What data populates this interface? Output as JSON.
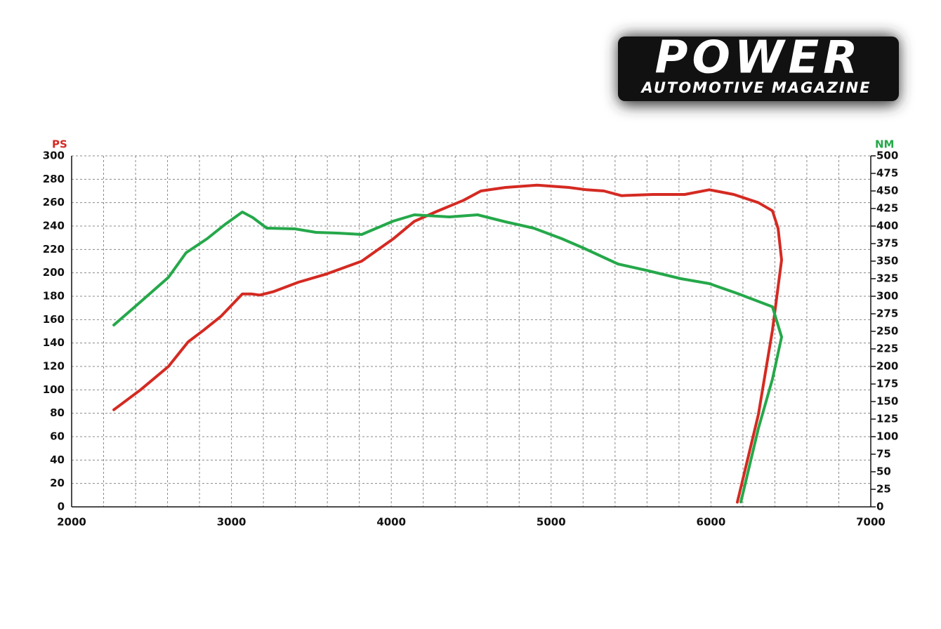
{
  "logo": {
    "title": "POWER",
    "subtitle": "AUTOMOTIVE MAGAZINE"
  },
  "chart_data": {
    "type": "line",
    "ylabel": "PS",
    "y2label": "NM",
    "xlim": [
      2000,
      7000
    ],
    "xticks": [
      2000,
      3000,
      4000,
      5000,
      6000,
      7000
    ],
    "ylim": [
      0,
      300
    ],
    "yticks": [
      0,
      20,
      40,
      60,
      80,
      100,
      120,
      140,
      160,
      180,
      200,
      220,
      240,
      260,
      280,
      300
    ],
    "y2lim": [
      0,
      500
    ],
    "y2ticks": [
      0,
      25,
      50,
      75,
      100,
      125,
      150,
      175,
      200,
      225,
      250,
      275,
      300,
      325,
      350,
      375,
      400,
      425,
      450,
      475,
      500
    ],
    "grid": true,
    "series": [
      {
        "name": "PS",
        "color": "#d42a22",
        "x": [
          2264,
          2431,
          2606,
          2729,
          2826,
          2936,
          3068,
          3125,
          3177,
          3265,
          3419,
          3595,
          3815,
          4012,
          4144,
          4276,
          4452,
          4561,
          4715,
          4913,
          5110,
          5220,
          5330,
          5440,
          5638,
          5836,
          5990,
          6143,
          6297,
          6385,
          6420,
          6442,
          6385,
          6297,
          6165
        ],
        "values": [
          83,
          100,
          120,
          141,
          151,
          163,
          182,
          182,
          181,
          184,
          192,
          199,
          210,
          229,
          244,
          252,
          262,
          270,
          273,
          275,
          273,
          271,
          270,
          266,
          267,
          267,
          271,
          267,
          260,
          253,
          238,
          211,
          151,
          79,
          4
        ]
      },
      {
        "name": "NM",
        "color": "#25a84a",
        "axis": "y2",
        "x": [
          2264,
          2431,
          2606,
          2716,
          2848,
          2958,
          3068,
          3134,
          3221,
          3397,
          3529,
          3661,
          3815,
          4012,
          4144,
          4364,
          4540,
          4715,
          4891,
          5067,
          5199,
          5418,
          5594,
          5813,
          5990,
          6165,
          6385,
          6442,
          6385,
          6297,
          6187
        ],
        "values": [
          259,
          292,
          327,
          362,
          382,
          402,
          420,
          412,
          397,
          396,
          391,
          390,
          388,
          407,
          416,
          413,
          416,
          406,
          397,
          382,
          369,
          346,
          337,
          325,
          318,
          304,
          285,
          242,
          182,
          112,
          7
        ]
      }
    ]
  }
}
